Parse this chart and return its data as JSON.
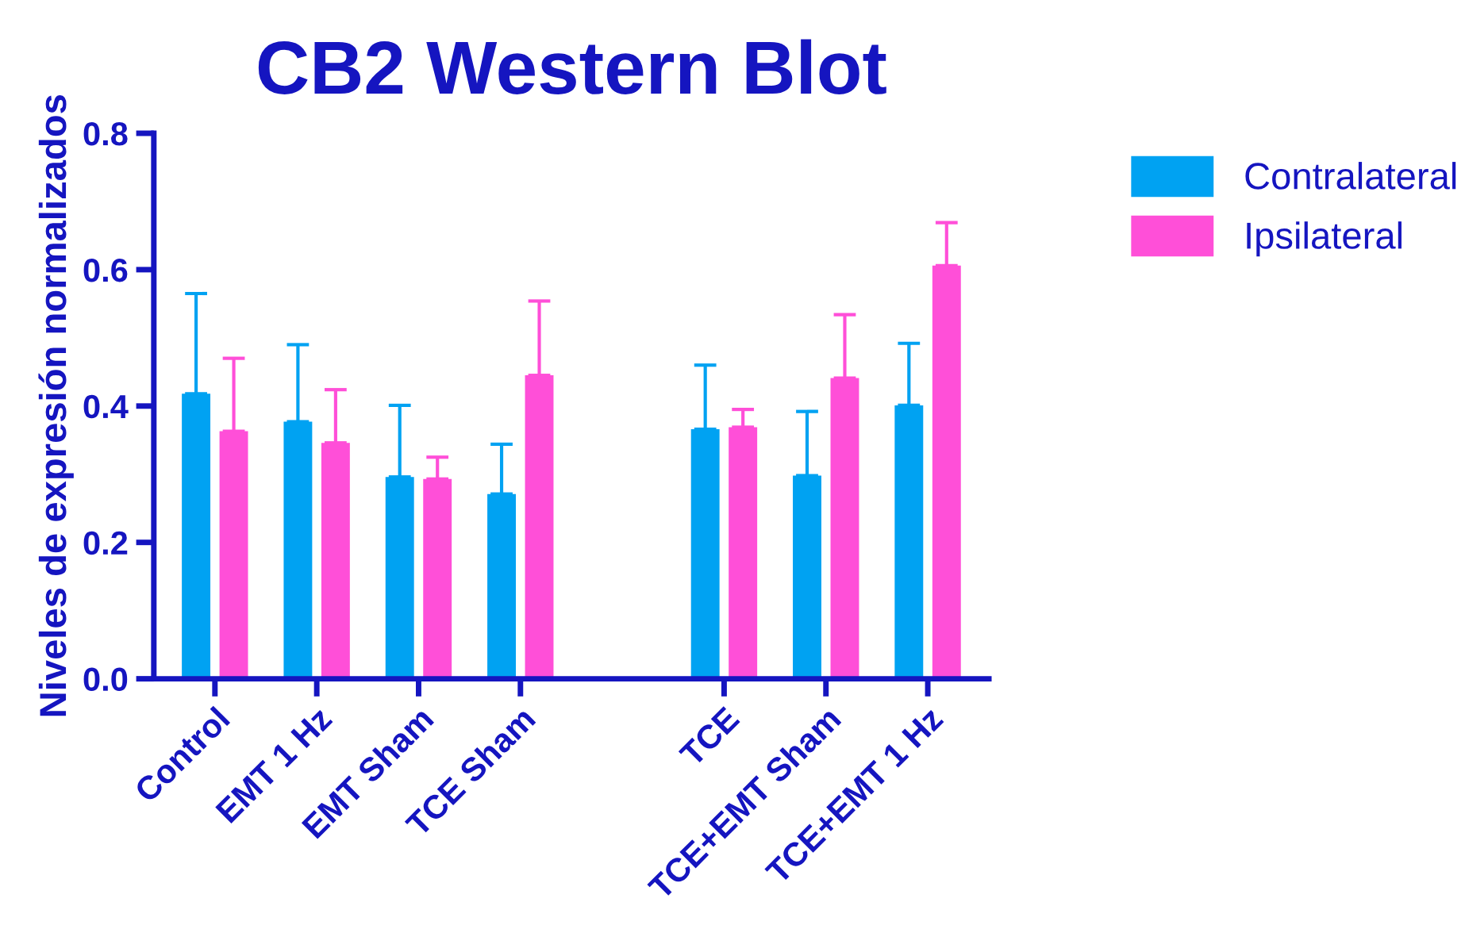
{
  "chart_data": {
    "type": "bar",
    "title": "CB2 Western Blot",
    "ylabel": "Niveles de expresión normalizados",
    "categories": [
      "Control",
      "EMT 1 Hz",
      "EMT Sham",
      "TCE Sham",
      null,
      "TCE",
      "TCE+EMT Sham",
      "TCE+EMT 1 Hz"
    ],
    "series": [
      {
        "name": "Contralateral",
        "color": "#00a2f2",
        "values": [
          0.418,
          0.377,
          0.296,
          0.271,
          null,
          0.366,
          0.298,
          0.401
        ],
        "errors": [
          [
            0.418,
            0.565
          ],
          [
            0.377,
            0.49
          ],
          [
            0.296,
            0.401
          ],
          [
            0.271,
            0.344
          ],
          null,
          [
            0.366,
            0.46
          ],
          [
            0.298,
            0.392
          ],
          [
            0.401,
            0.492
          ]
        ]
      },
      {
        "name": "Ipsilateral",
        "color": "#ff4fd8",
        "values": [
          0.363,
          0.346,
          0.293,
          0.445,
          null,
          0.369,
          0.441,
          0.606
        ],
        "errors": [
          [
            0.363,
            0.47
          ],
          [
            0.346,
            0.424
          ],
          [
            0.293,
            0.325
          ],
          [
            0.445,
            0.554
          ],
          null,
          [
            0.369,
            0.395
          ],
          [
            0.441,
            0.534
          ],
          [
            0.606,
            0.669
          ]
        ]
      }
    ],
    "ylim": [
      0,
      0.8
    ],
    "yticks": [
      {
        "value": 0,
        "label": "0.0"
      },
      {
        "value": 0.2,
        "label": "0.2"
      },
      {
        "value": 0.4,
        "label": "0.4"
      },
      {
        "value": 0.6,
        "label": "0.6"
      },
      {
        "value": 0.8,
        "label": "0.8"
      }
    ],
    "grid": false,
    "legend": "top right"
  }
}
